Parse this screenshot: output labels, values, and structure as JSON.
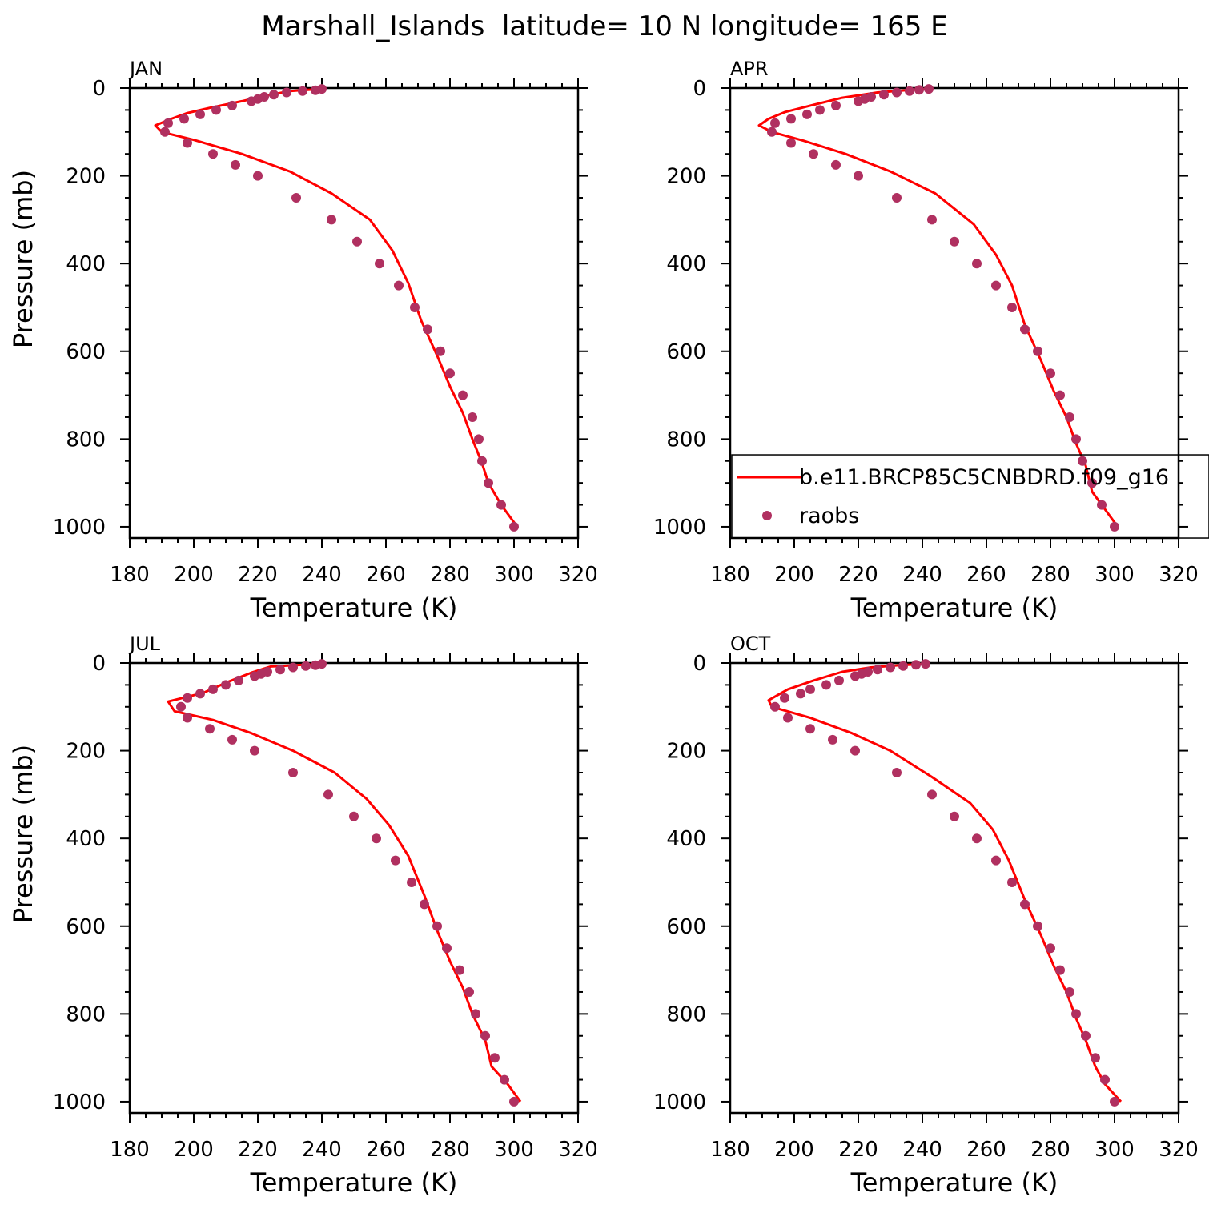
{
  "title": "Marshall_Islands  latitude= 10 N longitude= 165 E",
  "colors": {
    "model": "#ff0000",
    "obs": "#b03060",
    "axis": "#000000"
  },
  "legend": {
    "placement": "inside lower-right of APR panel",
    "model_label": "b.e11.BRCP85C5CNBDRD.f09_g16",
    "obs_label": "raobs"
  },
  "chart_data": [
    {
      "type": "line",
      "panel": "JAN",
      "xlabel": "Temperature (K)",
      "ylabel": "Pressure (mb)",
      "xlim": [
        180,
        320
      ],
      "ylim": [
        1000,
        0
      ],
      "xticks": [
        180,
        200,
        220,
        240,
        260,
        280,
        300,
        320
      ],
      "yticks": [
        0,
        200,
        400,
        600,
        800,
        1000
      ],
      "grid": false,
      "series": [
        {
          "name": "b.e11.BRCP85C5CNBDRD.f09_g16",
          "style": "line",
          "points": [
            [
              238,
              3
            ],
            [
              230,
              7
            ],
            [
              222,
              18
            ],
            [
              215,
              30
            ],
            [
              205,
              45
            ],
            [
              198,
              57
            ],
            [
              193,
              70
            ],
            [
              188,
              85
            ],
            [
              190,
              100
            ],
            [
              200,
              118
            ],
            [
              215,
              150
            ],
            [
              230,
              190
            ],
            [
              243,
              240
            ],
            [
              255,
              300
            ],
            [
              262,
              370
            ],
            [
              267,
              445
            ],
            [
              271,
              530
            ],
            [
              276,
              610
            ],
            [
              280,
              680
            ],
            [
              284,
              740
            ],
            [
              287,
              800
            ],
            [
              290,
              855
            ],
            [
              292,
              900
            ],
            [
              296,
              950
            ],
            [
              301,
              1000
            ]
          ]
        },
        {
          "name": "raobs",
          "style": "scatter",
          "points": [
            [
              240,
              2
            ],
            [
              238,
              5
            ],
            [
              234,
              7
            ],
            [
              229,
              10
            ],
            [
              225,
              15
            ],
            [
              222,
              20
            ],
            [
              220,
              25
            ],
            [
              218,
              30
            ],
            [
              212,
              40
            ],
            [
              207,
              50
            ],
            [
              202,
              60
            ],
            [
              197,
              70
            ],
            [
              192,
              80
            ],
            [
              191,
              100
            ],
            [
              198,
              125
            ],
            [
              206,
              150
            ],
            [
              213,
              175
            ],
            [
              220,
              200
            ],
            [
              232,
              250
            ],
            [
              243,
              300
            ],
            [
              251,
              350
            ],
            [
              258,
              400
            ],
            [
              264,
              450
            ],
            [
              269,
              500
            ],
            [
              273,
              550
            ],
            [
              277,
              600
            ],
            [
              280,
              650
            ],
            [
              284,
              700
            ],
            [
              287,
              750
            ],
            [
              289,
              800
            ],
            [
              290,
              850
            ],
            [
              292,
              900
            ],
            [
              296,
              950
            ],
            [
              300,
              1000
            ]
          ]
        }
      ]
    },
    {
      "type": "line",
      "panel": "APR",
      "xlabel": "Temperature (K)",
      "ylabel": "",
      "xlim": [
        180,
        320
      ],
      "ylim": [
        1000,
        0
      ],
      "xticks": [
        180,
        200,
        220,
        240,
        260,
        280,
        300,
        320
      ],
      "yticks": [
        0,
        200,
        400,
        600,
        800,
        1000
      ],
      "grid": false,
      "series": [
        {
          "name": "b.e11.BRCP85C5CNBDRD.f09_g16",
          "style": "line",
          "points": [
            [
              242,
              2
            ],
            [
              235,
              5
            ],
            [
              226,
              10
            ],
            [
              215,
              22
            ],
            [
              205,
              40
            ],
            [
              197,
              55
            ],
            [
              192,
              70
            ],
            [
              189,
              85
            ],
            [
              193,
              100
            ],
            [
              203,
              120
            ],
            [
              216,
              150
            ],
            [
              230,
              190
            ],
            [
              244,
              240
            ],
            [
              256,
              310
            ],
            [
              263,
              380
            ],
            [
              268,
              450
            ],
            [
              272,
              540
            ],
            [
              277,
              620
            ],
            [
              281,
              690
            ],
            [
              285,
              750
            ],
            [
              288,
              810
            ],
            [
              291,
              860
            ],
            [
              293,
              920
            ],
            [
              297,
              960
            ],
            [
              301,
              1000
            ]
          ]
        },
        {
          "name": "raobs",
          "style": "scatter",
          "points": [
            [
              242,
              2
            ],
            [
              239,
              4
            ],
            [
              236,
              7
            ],
            [
              232,
              10
            ],
            [
              228,
              15
            ],
            [
              224,
              20
            ],
            [
              222,
              25
            ],
            [
              220,
              30
            ],
            [
              213,
              40
            ],
            [
              208,
              50
            ],
            [
              204,
              60
            ],
            [
              199,
              70
            ],
            [
              194,
              80
            ],
            [
              193,
              100
            ],
            [
              199,
              125
            ],
            [
              206,
              150
            ],
            [
              213,
              175
            ],
            [
              220,
              200
            ],
            [
              232,
              250
            ],
            [
              243,
              300
            ],
            [
              250,
              350
            ],
            [
              257,
              400
            ],
            [
              263,
              450
            ],
            [
              268,
              500
            ],
            [
              272,
              550
            ],
            [
              276,
              600
            ],
            [
              280,
              650
            ],
            [
              283,
              700
            ],
            [
              286,
              750
            ],
            [
              288,
              800
            ],
            [
              290,
              850
            ],
            [
              293,
              900
            ],
            [
              296,
              950
            ],
            [
              300,
              1000
            ]
          ]
        }
      ]
    },
    {
      "type": "line",
      "panel": "JUL",
      "xlabel": "Temperature (K)",
      "ylabel": "Pressure (mb)",
      "xlim": [
        180,
        320
      ],
      "ylim": [
        1000,
        0
      ],
      "xticks": [
        180,
        200,
        220,
        240,
        260,
        280,
        300,
        320
      ],
      "yticks": [
        0,
        200,
        400,
        600,
        800,
        1000
      ],
      "grid": false,
      "series": [
        {
          "name": "b.e11.BRCP85C5CNBDRD.f09_g16",
          "style": "line",
          "points": [
            [
              241,
              2
            ],
            [
              232,
              5
            ],
            [
              224,
              8
            ],
            [
              218,
              22
            ],
            [
              210,
              45
            ],
            [
              203,
              68
            ],
            [
              192,
              88
            ],
            [
              194,
              110
            ],
            [
              206,
              130
            ],
            [
              218,
              160
            ],
            [
              231,
              200
            ],
            [
              244,
              250
            ],
            [
              254,
              310
            ],
            [
              261,
              370
            ],
            [
              267,
              440
            ],
            [
              272,
              530
            ],
            [
              276,
              610
            ],
            [
              280,
              680
            ],
            [
              284,
              740
            ],
            [
              287,
              800
            ],
            [
              291,
              860
            ],
            [
              293,
              920
            ],
            [
              298,
              960
            ],
            [
              302,
              1000
            ]
          ]
        },
        {
          "name": "raobs",
          "style": "scatter",
          "points": [
            [
              240,
              2
            ],
            [
              238,
              5
            ],
            [
              235,
              7
            ],
            [
              231,
              10
            ],
            [
              227,
              15
            ],
            [
              223,
              20
            ],
            [
              221,
              25
            ],
            [
              219,
              30
            ],
            [
              214,
              40
            ],
            [
              210,
              50
            ],
            [
              206,
              60
            ],
            [
              202,
              70
            ],
            [
              198,
              80
            ],
            [
              196,
              100
            ],
            [
              198,
              125
            ],
            [
              205,
              150
            ],
            [
              212,
              175
            ],
            [
              219,
              200
            ],
            [
              231,
              250
            ],
            [
              242,
              300
            ],
            [
              250,
              350
            ],
            [
              257,
              400
            ],
            [
              263,
              450
            ],
            [
              268,
              500
            ],
            [
              272,
              550
            ],
            [
              276,
              600
            ],
            [
              279,
              650
            ],
            [
              283,
              700
            ],
            [
              286,
              750
            ],
            [
              288,
              800
            ],
            [
              291,
              850
            ],
            [
              294,
              900
            ],
            [
              297,
              950
            ],
            [
              300,
              1000
            ]
          ]
        }
      ]
    },
    {
      "type": "line",
      "panel": "OCT",
      "xlabel": "Temperature (K)",
      "ylabel": "",
      "xlim": [
        180,
        320
      ],
      "ylim": [
        1000,
        0
      ],
      "xticks": [
        180,
        200,
        220,
        240,
        260,
        280,
        300,
        320
      ],
      "yticks": [
        0,
        200,
        400,
        600,
        800,
        1000
      ],
      "grid": false,
      "series": [
        {
          "name": "b.e11.BRCP85C5CNBDRD.f09_g16",
          "style": "line",
          "points": [
            [
              241,
              2
            ],
            [
              233,
              5
            ],
            [
              224,
              10
            ],
            [
              215,
              20
            ],
            [
              206,
              40
            ],
            [
              198,
              60
            ],
            [
              192,
              85
            ],
            [
              193,
              100
            ],
            [
              205,
              125
            ],
            [
              218,
              160
            ],
            [
              230,
              200
            ],
            [
              243,
              260
            ],
            [
              255,
              320
            ],
            [
              262,
              380
            ],
            [
              267,
              450
            ],
            [
              272,
              540
            ],
            [
              277,
              620
            ],
            [
              281,
              690
            ],
            [
              285,
              750
            ],
            [
              288,
              810
            ],
            [
              291,
              860
            ],
            [
              294,
              920
            ],
            [
              297,
              960
            ],
            [
              302,
              1000
            ]
          ]
        },
        {
          "name": "raobs",
          "style": "scatter",
          "points": [
            [
              241,
              2
            ],
            [
              238,
              4
            ],
            [
              234,
              7
            ],
            [
              230,
              10
            ],
            [
              226,
              15
            ],
            [
              223,
              20
            ],
            [
              221,
              25
            ],
            [
              219,
              30
            ],
            [
              214,
              40
            ],
            [
              210,
              50
            ],
            [
              205,
              60
            ],
            [
              202,
              70
            ],
            [
              197,
              80
            ],
            [
              194,
              100
            ],
            [
              198,
              125
            ],
            [
              205,
              150
            ],
            [
              212,
              175
            ],
            [
              219,
              200
            ],
            [
              232,
              250
            ],
            [
              243,
              300
            ],
            [
              250,
              350
            ],
            [
              257,
              400
            ],
            [
              263,
              450
            ],
            [
              268,
              500
            ],
            [
              272,
              550
            ],
            [
              276,
              600
            ],
            [
              280,
              650
            ],
            [
              283,
              700
            ],
            [
              286,
              750
            ],
            [
              288,
              800
            ],
            [
              291,
              850
            ],
            [
              294,
              900
            ],
            [
              297,
              950
            ],
            [
              300,
              1000
            ]
          ]
        }
      ]
    }
  ]
}
